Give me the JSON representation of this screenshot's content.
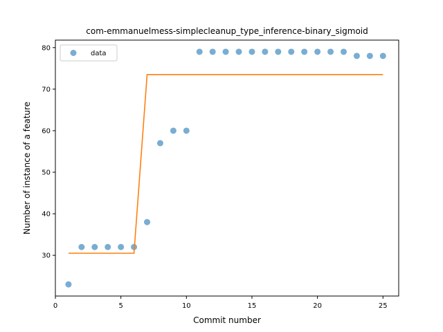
{
  "chart_data": {
    "type": "scatter",
    "title": "com-emmanuelmess-simplecleanup_type_inference-binary_sigmoid",
    "xlabel": "Commit number",
    "ylabel": "Number of instance of a feature",
    "xlim": [
      0,
      26.2
    ],
    "ylim": [
      20.2,
      81.8
    ],
    "xticks": [
      0,
      5,
      10,
      15,
      20,
      25
    ],
    "yticks": [
      30,
      40,
      50,
      60,
      70,
      80
    ],
    "grid": false,
    "legend_position": "top-left",
    "series": [
      {
        "name": "data",
        "kind": "scatter",
        "color": "#1f77b4",
        "x": [
          1,
          2,
          3,
          4,
          5,
          6,
          7,
          8,
          9,
          10,
          11,
          12,
          13,
          14,
          15,
          16,
          17,
          18,
          19,
          20,
          21,
          22,
          23,
          24,
          25
        ],
        "y": [
          23,
          32,
          32,
          32,
          32,
          32,
          38,
          57,
          60,
          60,
          79,
          79,
          79,
          79,
          79,
          79,
          79,
          79,
          79,
          79,
          79,
          79,
          78,
          78,
          78
        ]
      },
      {
        "kind": "line",
        "color": "#ff7f0e",
        "x": [
          1,
          2,
          3,
          4,
          5,
          6,
          7,
          8,
          9,
          10,
          11,
          12,
          13,
          14,
          15,
          16,
          17,
          18,
          19,
          20,
          21,
          22,
          23,
          24,
          25
        ],
        "y": [
          30.5,
          30.5,
          30.5,
          30.5,
          30.5,
          30.5,
          73.5,
          73.5,
          73.5,
          73.5,
          73.5,
          73.5,
          73.5,
          73.5,
          73.5,
          73.5,
          73.5,
          73.5,
          73.5,
          73.5,
          73.5,
          73.5,
          73.5,
          73.5,
          73.5
        ]
      }
    ]
  }
}
